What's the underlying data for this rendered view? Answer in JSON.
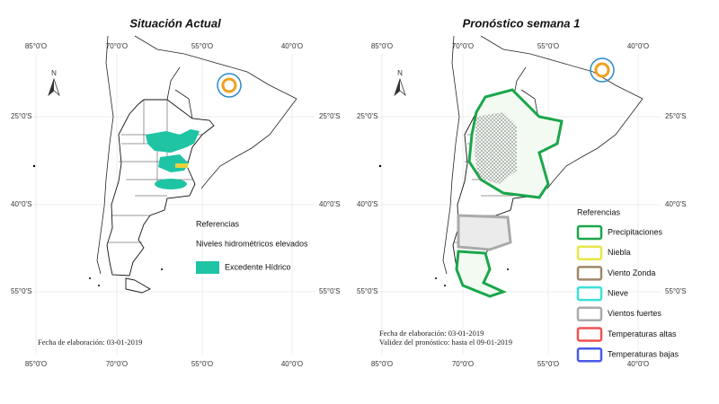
{
  "panels": [
    {
      "title": "Situación Actual",
      "north": "N",
      "lon_labels_top": [
        "85°0'O",
        "70°0'O",
        "55°0'O",
        "40°0'O"
      ],
      "lon_labels_bottom": [
        "85°0'O",
        "70°0'O",
        "55°0'O",
        "40°0'O"
      ],
      "lat_labels_left": [
        "25°0'S",
        "40°0'S",
        "55°0'S"
      ],
      "lat_labels_right": [
        "25°0'S",
        "40°0'S",
        "55°0'S"
      ],
      "legend": {
        "title": "Referencias",
        "subtitle": "Niveles hidrométricos elevados",
        "items": [
          {
            "label": "Excedente Hídrico",
            "color": "#1ec4a4"
          }
        ]
      },
      "notes": [
        "Fecha de elaboración: 03-01-2019"
      ]
    },
    {
      "title": "Pronóstico semana 1",
      "north": "N",
      "lon_labels_top": [
        "85°0'O",
        "70°0'O",
        "55°0'O",
        "40°0'O"
      ],
      "lon_labels_bottom": [
        "85°0'O",
        "70°0'O",
        "55°0'O",
        "40°0'O"
      ],
      "lat_labels_left": [
        "25°0'S",
        "40°0'S",
        "55°0'S"
      ],
      "lat_labels_right": [
        "25°0'S",
        "40°0'S",
        "55°0'S"
      ],
      "legend": {
        "title": "Referencias",
        "items": [
          {
            "label": "Precipitaciones",
            "color": "#1aa64a"
          },
          {
            "label": "Niebla",
            "color": "#e6e64a"
          },
          {
            "label": "Viento Zonda",
            "color": "#a08868"
          },
          {
            "label": "Nieve",
            "color": "#3ee0d8"
          },
          {
            "label": "Vientos fuertes",
            "color": "#aaaaaa"
          },
          {
            "label": "Temperaturas altas",
            "color": "#f05050"
          },
          {
            "label": "Temperaturas bajas",
            "color": "#4a5ae8"
          }
        ]
      },
      "notes": [
        "Fecha de elaboración: 03-01-2019",
        "Validez del pronóstico: hasta el 09-01-2019"
      ]
    }
  ]
}
